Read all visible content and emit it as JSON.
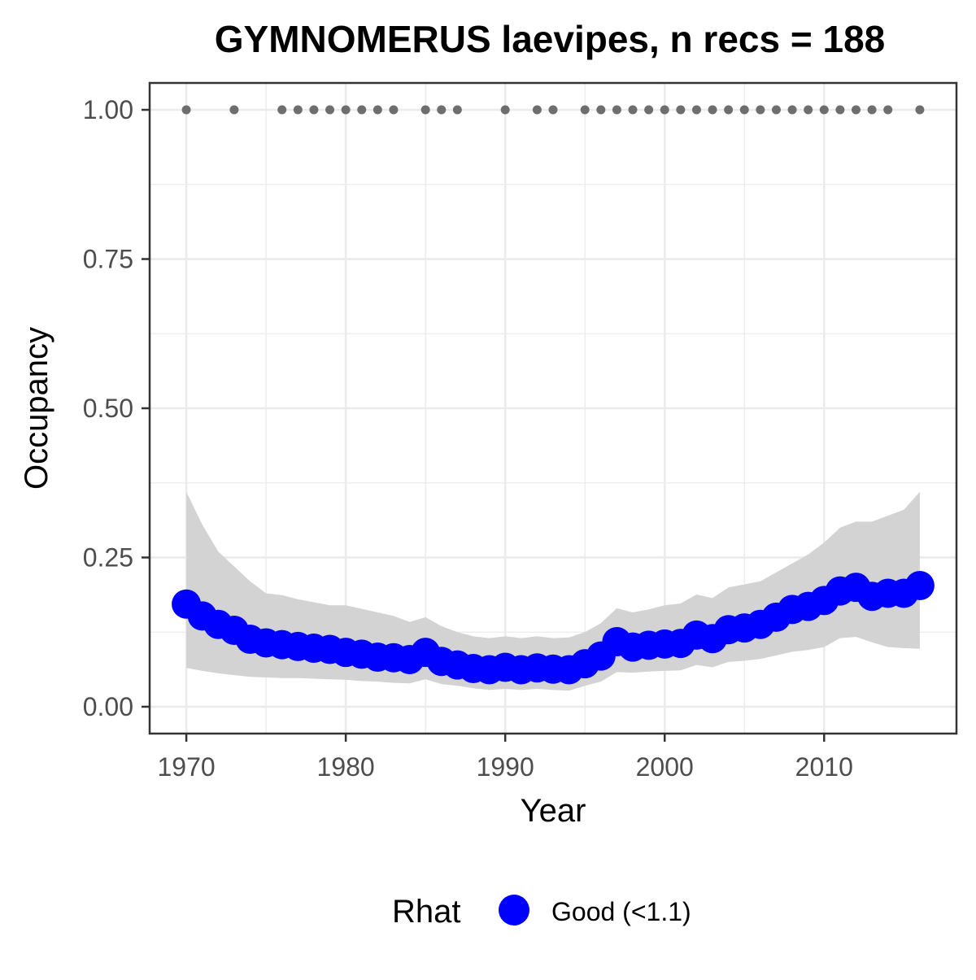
{
  "chart_data": {
    "type": "line",
    "title": "GYMNOMERUS laevipes, n recs = 188",
    "xlabel": "Year",
    "ylabel": "Occupancy",
    "xlim": [
      1967.7,
      2018.3
    ],
    "ylim": [
      -0.045,
      1.045
    ],
    "x_ticks": [
      1970,
      1980,
      1990,
      2000,
      2010
    ],
    "x_tick_labels": [
      "1970",
      "1980",
      "1990",
      "2000",
      "2010"
    ],
    "y_ticks": [
      0.0,
      0.25,
      0.5,
      0.75,
      1.0
    ],
    "y_tick_labels": [
      "0.00",
      "0.25",
      "0.50",
      "0.75",
      "1.00"
    ],
    "grid": true,
    "legend": {
      "title": "Rhat",
      "position": "bottom",
      "entries": [
        {
          "label": "Good (<1.1)",
          "color": "#0000ff"
        }
      ]
    },
    "colors": {
      "occupancy_point": "#0000ff",
      "ribbon": "#d3d3d3",
      "record_point": "#6e6e6e",
      "grid": "#ebebeb",
      "panel_border": "#333333"
    },
    "series": [
      {
        "name": "Good (<1.1)",
        "x": [
          1970,
          1971,
          1972,
          1973,
          1974,
          1975,
          1976,
          1977,
          1978,
          1979,
          1980,
          1981,
          1982,
          1983,
          1984,
          1985,
          1986,
          1987,
          1988,
          1989,
          1990,
          1991,
          1992,
          1993,
          1994,
          1995,
          1996,
          1997,
          1998,
          1999,
          2000,
          2001,
          2002,
          2003,
          2004,
          2005,
          2006,
          2007,
          2008,
          2009,
          2010,
          2011,
          2012,
          2013,
          2014,
          2015,
          2016
        ],
        "y": [
          0.172,
          0.152,
          0.138,
          0.128,
          0.113,
          0.107,
          0.104,
          0.101,
          0.098,
          0.096,
          0.091,
          0.088,
          0.083,
          0.082,
          0.079,
          0.091,
          0.076,
          0.07,
          0.064,
          0.062,
          0.066,
          0.062,
          0.065,
          0.063,
          0.062,
          0.072,
          0.085,
          0.109,
          0.1,
          0.103,
          0.105,
          0.106,
          0.12,
          0.114,
          0.129,
          0.132,
          0.138,
          0.15,
          0.163,
          0.168,
          0.178,
          0.194,
          0.2,
          0.185,
          0.19,
          0.19,
          0.203
        ],
        "lower": [
          0.065,
          0.06,
          0.056,
          0.053,
          0.05,
          0.049,
          0.048,
          0.048,
          0.047,
          0.046,
          0.045,
          0.043,
          0.042,
          0.04,
          0.039,
          0.046,
          0.038,
          0.035,
          0.031,
          0.028,
          0.03,
          0.028,
          0.03,
          0.028,
          0.027,
          0.035,
          0.042,
          0.058,
          0.057,
          0.059,
          0.06,
          0.061,
          0.07,
          0.066,
          0.075,
          0.077,
          0.08,
          0.086,
          0.092,
          0.095,
          0.1,
          0.115,
          0.117,
          0.108,
          0.1,
          0.098,
          0.097
        ],
        "upper": [
          0.36,
          0.305,
          0.26,
          0.235,
          0.21,
          0.19,
          0.187,
          0.18,
          0.175,
          0.17,
          0.17,
          0.164,
          0.158,
          0.152,
          0.142,
          0.15,
          0.135,
          0.125,
          0.118,
          0.115,
          0.118,
          0.115,
          0.118,
          0.115,
          0.116,
          0.125,
          0.14,
          0.165,
          0.158,
          0.163,
          0.17,
          0.173,
          0.188,
          0.182,
          0.2,
          0.205,
          0.21,
          0.225,
          0.24,
          0.255,
          0.275,
          0.3,
          0.31,
          0.31,
          0.32,
          0.33,
          0.36
        ]
      }
    ],
    "records": {
      "y": 1.0,
      "x": [
        1970,
        1973,
        1976,
        1977,
        1978,
        1979,
        1980,
        1981,
        1982,
        1983,
        1985,
        1986,
        1987,
        1990,
        1992,
        1993,
        1995,
        1996,
        1997,
        1998,
        1999,
        2000,
        2001,
        2002,
        2003,
        2004,
        2005,
        2006,
        2007,
        2008,
        2009,
        2010,
        2011,
        2012,
        2013,
        2014,
        2016
      ]
    }
  }
}
